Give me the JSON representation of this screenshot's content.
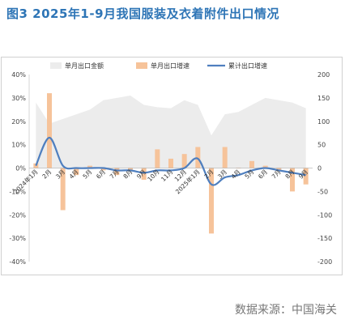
{
  "title": "图3 2025年1-9月我国服装及衣着附件出口情况",
  "source": "数据来源：中国海关",
  "colors": {
    "area": "#ececec",
    "bar": "#f6c39a",
    "line": "#4f7fbf",
    "title": "#2e75b6"
  },
  "chart_data": {
    "type": "bar",
    "legend_position": "top",
    "grid": false,
    "categories": [
      "2024年1月",
      "2月",
      "3月",
      "4月",
      "5月",
      "6月",
      "7月",
      "8月",
      "9月",
      "10月",
      "11月",
      "12月",
      "2025年1月",
      "2月",
      "3月",
      "4月",
      "5月",
      "6月",
      "7月",
      "8月",
      "9月"
    ],
    "y_left": {
      "ticks": [
        "40%",
        "30%",
        "20%",
        "10%",
        "0%",
        "-10%",
        "-20%",
        "-30%",
        "-40%"
      ],
      "range": [
        -40,
        40
      ]
    },
    "y_right": {
      "ticks": [
        "200",
        "150",
        "100",
        "50",
        "0",
        "-50",
        "-100",
        "-150",
        "-200"
      ],
      "range": [
        -200,
        200
      ]
    },
    "series": [
      {
        "name": "单月出口金额",
        "type": "area",
        "axis": "right",
        "values": [
          140,
          95,
          105,
          115,
          125,
          145,
          150,
          155,
          135,
          130,
          128,
          145,
          135,
          70,
          115,
          120,
          135,
          150,
          145,
          140,
          128
        ]
      },
      {
        "name": "单月出口增速",
        "type": "bar",
        "axis": "left",
        "values": [
          2,
          32,
          -18,
          -3,
          1,
          -1,
          -3,
          -1,
          -5,
          8,
          4,
          6,
          9,
          -28,
          9,
          0,
          3,
          1,
          -1,
          -10,
          -7
        ]
      },
      {
        "name": "累计出口增速",
        "type": "line",
        "axis": "left",
        "values": [
          1,
          13,
          1,
          0,
          0,
          0,
          -1,
          -1,
          -2,
          -1,
          -1,
          0,
          4,
          -7,
          -4,
          -3,
          -1,
          0,
          -1,
          -2,
          -3
        ]
      }
    ]
  }
}
